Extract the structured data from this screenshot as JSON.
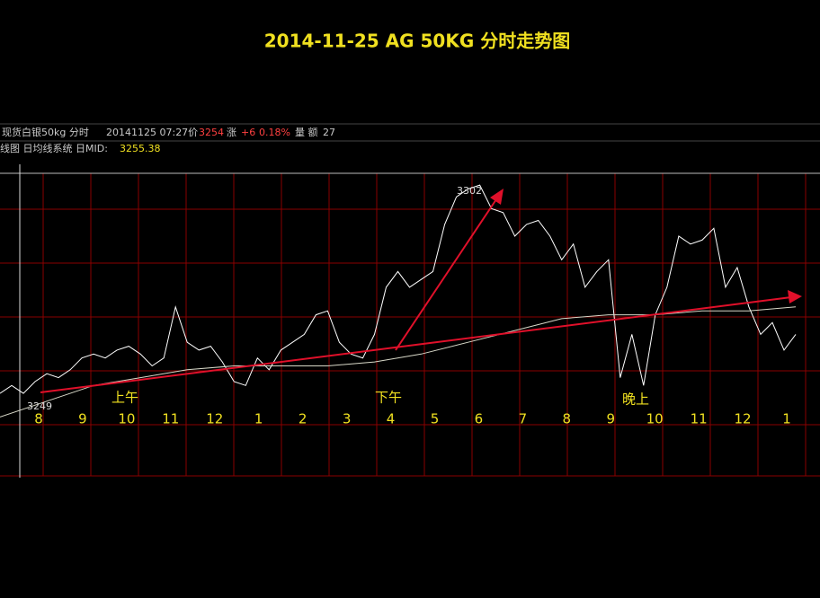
{
  "chart_data": {
    "type": "line",
    "title": "2014-11-25 AG 50KG 分时走势图",
    "header": {
      "name": "现货白银50kg 分时",
      "time": "20141125 07:27价",
      "price": "3254",
      "change_label": "涨",
      "change": "+6",
      "change_pct": "0.18%",
      "volume_label": "量 额",
      "volume": "27",
      "indicator": "线图 日均线系统 日MID:",
      "mid": "3255.38"
    },
    "x_labels": [
      "8",
      "9",
      "10",
      "11",
      "12",
      "1",
      "2",
      "3",
      "4",
      "5",
      "6",
      "7",
      "8",
      "9",
      "10",
      "11",
      "12",
      "1"
    ],
    "sessions": [
      "上午",
      "下午",
      "晚上"
    ],
    "annotations": [
      "3302",
      "3249"
    ],
    "ylim": [
      3228,
      3305
    ],
    "series": [
      {
        "color": "#ffffff",
        "values": [
          3249,
          3251,
          3249,
          3252,
          3254,
          3253,
          3255,
          3258,
          3259,
          3258,
          3260,
          3261,
          3259,
          3256,
          3258,
          3271,
          3262,
          3260,
          3261,
          3257,
          3252,
          3251,
          3258,
          3255,
          3260,
          3262,
          3264,
          3269,
          3270,
          3262,
          3259,
          3258,
          3264,
          3276,
          3280,
          3276,
          3278,
          3280,
          3292,
          3299,
          3301,
          3302,
          3296,
          3295,
          3289,
          3292,
          3293,
          3289,
          3283,
          3287,
          3276,
          3280,
          3283,
          3253,
          3264,
          3251,
          3269,
          3276,
          3289,
          3287,
          3288,
          3291,
          3276,
          3281,
          3271,
          3264,
          3267,
          3260,
          3264
        ]
      },
      {
        "color": "#d8d8c8",
        "values": [
          3243,
          3247,
          3251,
          3253,
          3255,
          3256,
          3256,
          3256,
          3257,
          3259,
          3262,
          3265,
          3268,
          3269,
          3269,
          3270,
          3270,
          3271
        ]
      }
    ]
  }
}
